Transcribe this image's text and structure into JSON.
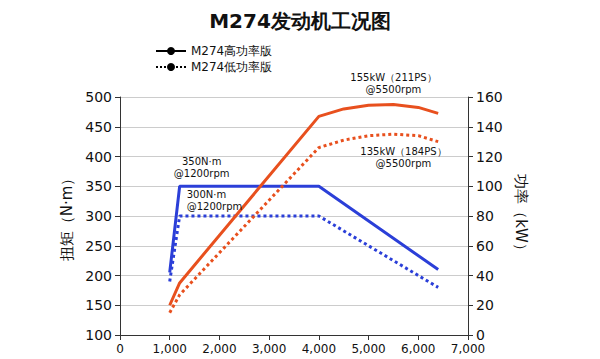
{
  "chart_data": {
    "type": "line",
    "title": "M274发动机工况图",
    "x_label": null,
    "y_label": "扭矩（N·m）",
    "y2_label": "功率（kW）",
    "xlim": [
      0,
      7000
    ],
    "xticks": [
      0,
      1000,
      2000,
      3000,
      4000,
      5000,
      6000,
      7000
    ],
    "ylim": [
      100,
      500
    ],
    "yticks": [
      100,
      150,
      200,
      250,
      300,
      350,
      400,
      450,
      500
    ],
    "y2lim": [
      0,
      160
    ],
    "y2ticks": [
      0,
      20,
      40,
      60,
      80,
      100,
      120,
      140,
      160
    ],
    "grid": true,
    "legend": "upper left",
    "series": [
      {
        "name": "M274高功率版",
        "color": "#2b3fd8",
        "line_style": "solid",
        "axis": "y",
        "x": [
          1000,
          1200,
          4000,
          6400
        ],
        "values": [
          205,
          350,
          350,
          210
        ]
      },
      {
        "name": "M274低功率版",
        "color": "#2b3fd8",
        "line_style": "dotted",
        "axis": "y",
        "x": [
          1000,
          1200,
          4000,
          6400
        ],
        "values": [
          190,
          300,
          300,
          180
        ]
      },
      {
        "name": "M274高功率版",
        "color": "#e8501e",
        "line_style": "solid",
        "axis": "y2",
        "x": [
          1000,
          1200,
          4000,
          4500,
          5000,
          5500,
          6000,
          6400
        ],
        "values": [
          20,
          35,
          147,
          152,
          154.5,
          155,
          153,
          149
        ]
      },
      {
        "name": "M274低功率版",
        "color": "#e8501e",
        "line_style": "dotted",
        "axis": "y2",
        "x": [
          1000,
          1200,
          4000,
          4500,
          5000,
          5500,
          6000,
          6400
        ],
        "values": [
          15,
          27,
          126,
          131,
          134,
          135,
          134,
          130
        ]
      }
    ],
    "annotations": [
      {
        "text": "350N·m\n@1200rpm",
        "x": 1200,
        "y": 350,
        "axis": "y"
      },
      {
        "text": "300N·m\n@1200rpm",
        "x": 1200,
        "y": 300,
        "axis": "y"
      },
      {
        "text": "155kW（211PS）\n@5500rpm",
        "x": 5500,
        "y": 155,
        "axis": "y2"
      },
      {
        "text": "135kW（184PS）\n@5500rpm",
        "x": 5500,
        "y": 135,
        "axis": "y2"
      }
    ]
  }
}
